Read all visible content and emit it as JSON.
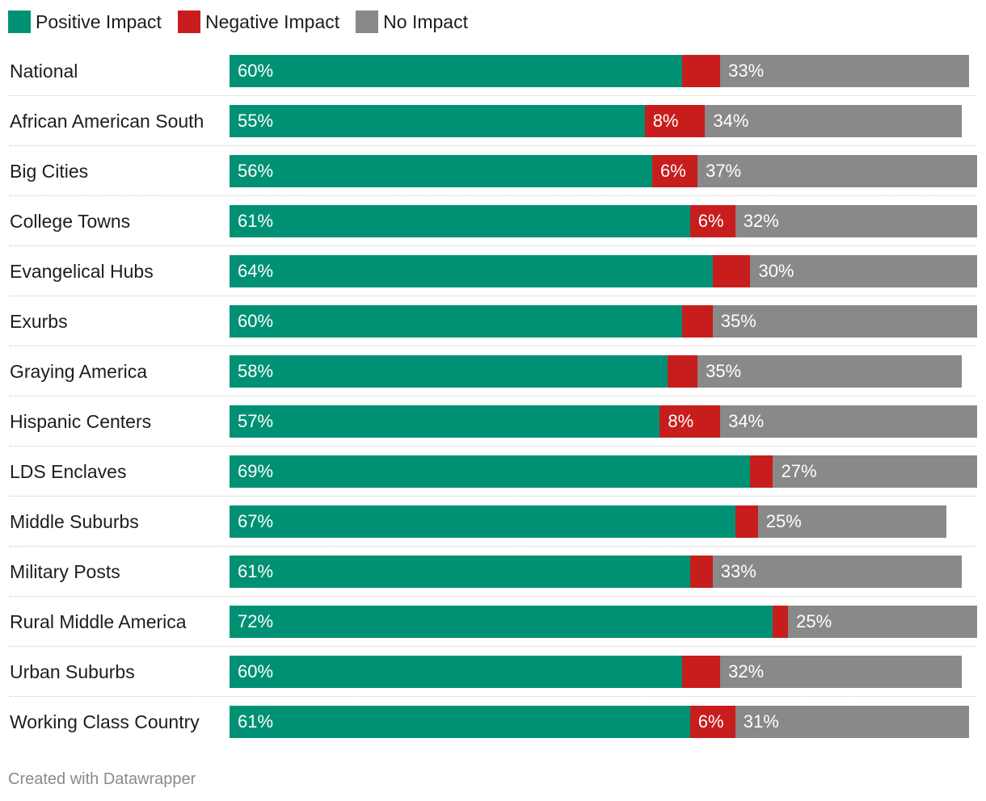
{
  "chart_data": {
    "type": "bar",
    "orientation": "horizontal",
    "stacked": true,
    "legend_position": "top-left",
    "categories": [
      "National",
      "African American South",
      "Big Cities",
      "College Towns",
      "Evangelical Hubs",
      "Exurbs",
      "Graying America",
      "Hispanic Centers",
      "LDS Enclaves",
      "Middle Suburbs",
      "Military Posts",
      "Rural Middle America",
      "Urban Suburbs",
      "Working Class Country"
    ],
    "series": [
      {
        "name": "Positive Impact",
        "color": "#009174",
        "values": [
          60,
          55,
          56,
          61,
          64,
          60,
          58,
          57,
          69,
          67,
          61,
          72,
          60,
          61
        ],
        "labels": [
          "60%",
          "55%",
          "56%",
          "61%",
          "64%",
          "60%",
          "58%",
          "57%",
          "69%",
          "67%",
          "61%",
          "72%",
          "60%",
          "61%"
        ]
      },
      {
        "name": "Negative Impact",
        "color": "#c71e1d",
        "values": [
          5,
          8,
          6,
          6,
          5,
          4,
          4,
          8,
          3,
          3,
          3,
          2,
          5,
          6
        ],
        "labels": [
          "",
          "8%",
          "6%",
          "6%",
          "",
          "",
          "",
          "8%",
          "",
          "",
          "",
          "",
          "",
          "6%"
        ]
      },
      {
        "name": "No Impact",
        "color": "#898989",
        "values": [
          33,
          34,
          37,
          32,
          30,
          35,
          35,
          34,
          27,
          25,
          33,
          25,
          32,
          31
        ],
        "labels": [
          "33%",
          "34%",
          "37%",
          "32%",
          "30%",
          "35%",
          "35%",
          "34%",
          "27%",
          "25%",
          "33%",
          "25%",
          "32%",
          "31%"
        ]
      }
    ],
    "xlim": [
      0,
      100
    ]
  },
  "footer": "Created with Datawrapper"
}
